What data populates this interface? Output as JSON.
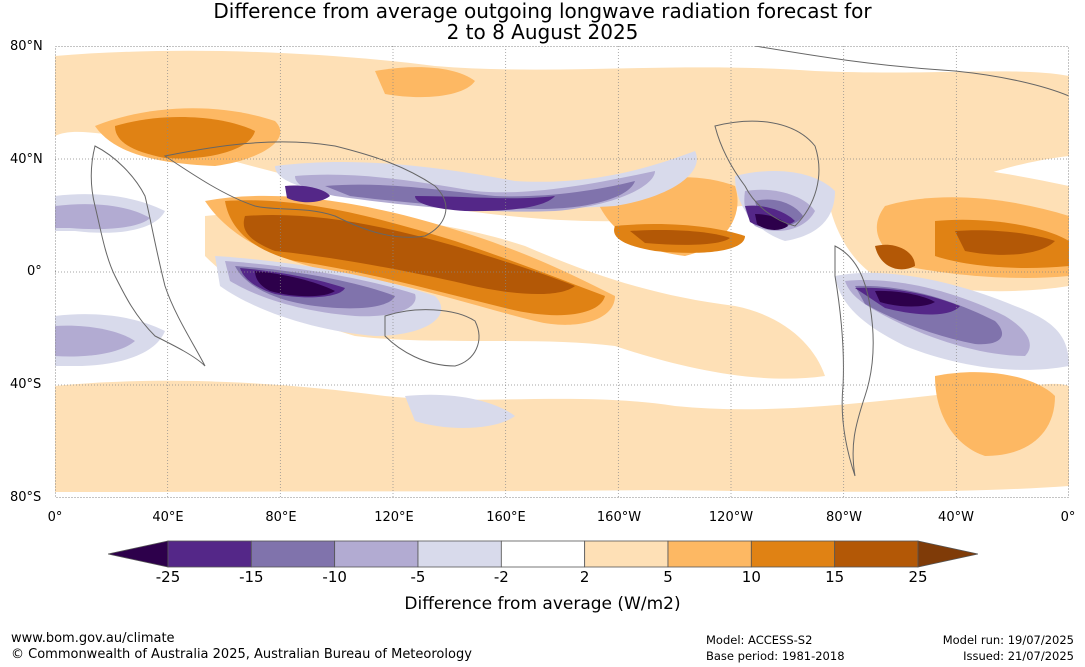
{
  "title_line1": "Difference from average outgoing longwave radiation forecast for",
  "title_line2": "2 to 8 August 2025",
  "lat_labels": [
    "80°N",
    "40°N",
    "0°",
    "40°S",
    "80°S"
  ],
  "lon_labels": [
    "0°",
    "40°E",
    "80°E",
    "120°E",
    "160°E",
    "160°W",
    "120°W",
    "80°W",
    "40°W",
    "0°"
  ],
  "colorbar": {
    "ticks": [
      "-25",
      "-15",
      "-10",
      "-5",
      "-2",
      "2",
      "5",
      "10",
      "15",
      "25"
    ],
    "colors": [
      "#2d004b",
      "#542788",
      "#8073ac",
      "#b2abd2",
      "#d8daeb",
      "#ffffff",
      "#fee0b6",
      "#fdb863",
      "#e08214",
      "#b35806",
      "#7f3b08"
    ],
    "title": "Difference from average (W/m2)"
  },
  "footer": {
    "website": "www.bom.gov.au/climate",
    "copyright": "© Commonwealth of Australia 2025, Australian Bureau of Meteorology",
    "model": "Model: ACCESS-S2",
    "base_period": "Base period: 1981-2018",
    "model_run": "Model run: 19/07/2025",
    "issued": "Issued: 21/07/2025"
  }
}
